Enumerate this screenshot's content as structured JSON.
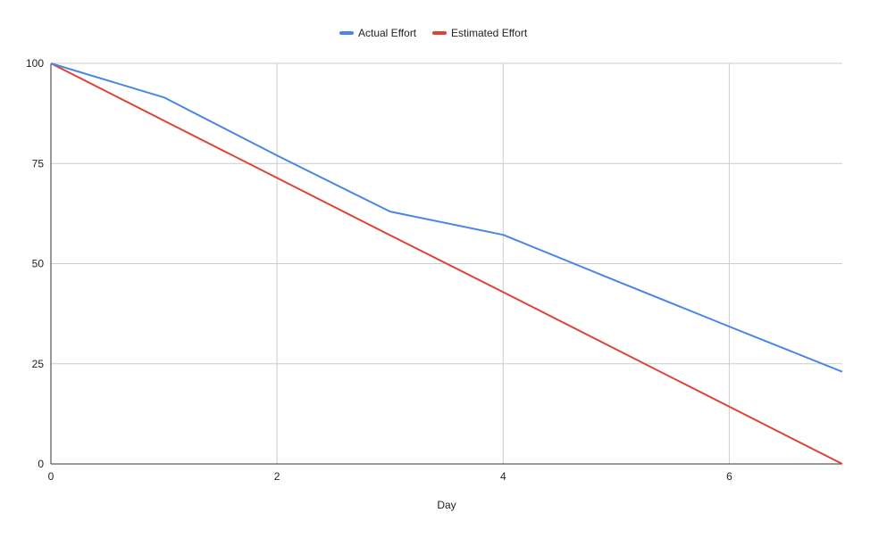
{
  "chart_data": {
    "type": "line",
    "title": "",
    "xlabel": "Day",
    "ylabel": "",
    "x": [
      0,
      1,
      2,
      3,
      4,
      5,
      6,
      7
    ],
    "xlim": [
      0,
      7
    ],
    "ylim": [
      0,
      100
    ],
    "x_ticks": [
      0,
      2,
      4,
      6
    ],
    "y_ticks": [
      0,
      25,
      50,
      75,
      100
    ],
    "grid": true,
    "legend_position": "top",
    "series": [
      {
        "name": "Actual Effort",
        "color": "#4a86e8",
        "values": [
          100,
          91.5,
          77,
          63,
          57.2,
          45.7,
          34.3,
          23
        ]
      },
      {
        "name": "Estimated Effort",
        "color": "#db4437",
        "values": [
          100,
          85.7,
          71.4,
          57.1,
          42.9,
          28.6,
          14.3,
          0
        ]
      }
    ]
  }
}
